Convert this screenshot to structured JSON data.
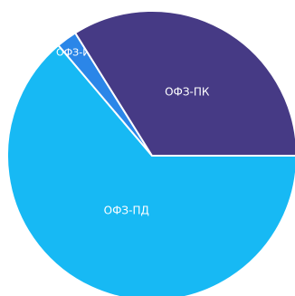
{
  "chart_data": {
    "type": "pie",
    "slices": [
      {
        "label": "ОФЗ-ПД",
        "value": 63.8,
        "color": "#17b9f4"
      },
      {
        "label": "ОФЗ-ИН",
        "value": 2.3,
        "color": "#2b86e8"
      },
      {
        "label": "ОФЗ-ПК",
        "value": 33.9,
        "color": "#463a85"
      }
    ],
    "start_angle_deg": 0,
    "direction": "clockwise",
    "legend": "none",
    "title": ""
  }
}
